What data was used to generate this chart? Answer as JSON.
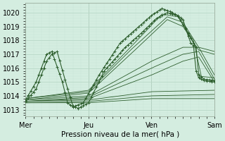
{
  "xlabel": "Pression niveau de la mer( hPa )",
  "bg_color": "#d4ede0",
  "grid_major_color": "#b8d8c8",
  "grid_minor_color": "#c8e4d8",
  "line_color": "#2d5e2d",
  "xlim": [
    0,
    72
  ],
  "ylim": [
    1012.5,
    1020.7
  ],
  "yticks": [
    1013,
    1014,
    1015,
    1016,
    1017,
    1018,
    1019,
    1020
  ],
  "day_labels": [
    "Mer",
    "Jeu",
    "Ven",
    "Sam"
  ],
  "day_positions": [
    0,
    24,
    48,
    72
  ],
  "figsize": [
    3.2,
    2.0
  ],
  "dpi": 100
}
